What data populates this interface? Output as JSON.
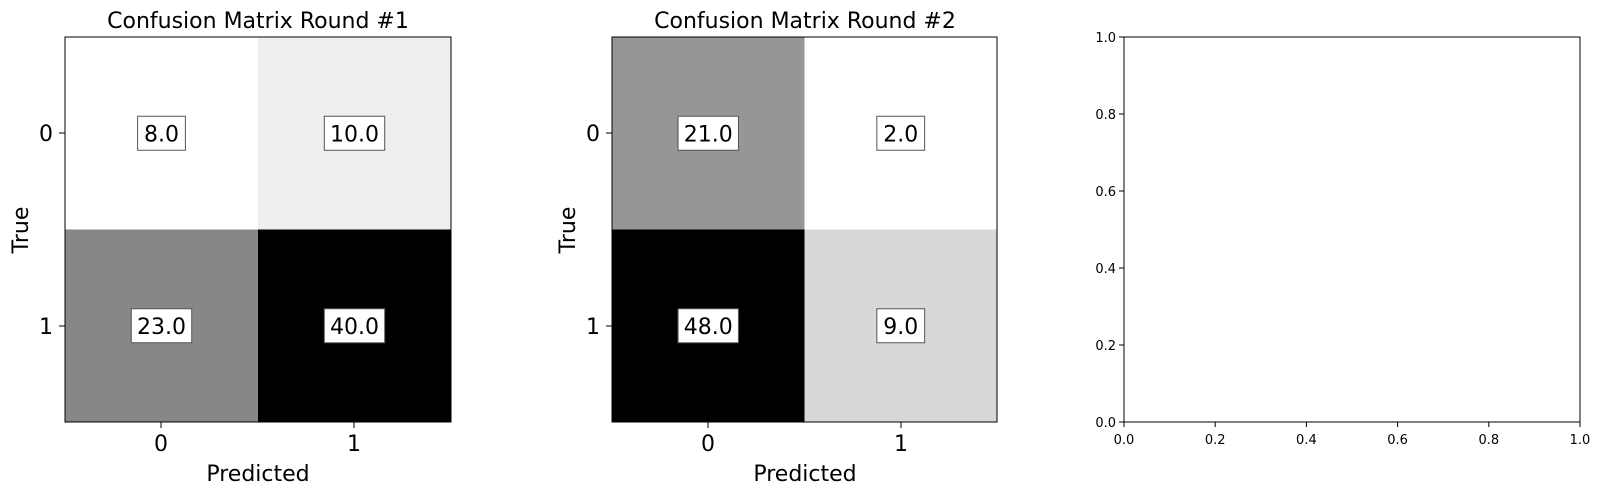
{
  "chart_data": [
    {
      "type": "heatmap",
      "title": "Confusion Matrix Round #1",
      "xlabel": "Predicted",
      "ylabel": "True",
      "x_ticks": [
        "0",
        "1"
      ],
      "y_ticks": [
        "0",
        "1"
      ],
      "values": [
        [
          8.0,
          10.0
        ],
        [
          23.0,
          40.0
        ]
      ],
      "value_labels": [
        [
          "8.0",
          "10.0"
        ],
        [
          "23.0",
          "40.0"
        ]
      ],
      "colormap": "Greys"
    },
    {
      "type": "heatmap",
      "title": "Confusion Matrix Round #2",
      "xlabel": "Predicted",
      "ylabel": "True",
      "x_ticks": [
        "0",
        "1"
      ],
      "y_ticks": [
        "0",
        "1"
      ],
      "values": [
        [
          21.0,
          2.0
        ],
        [
          48.0,
          9.0
        ]
      ],
      "value_labels": [
        [
          "21.0",
          "2.0"
        ],
        [
          "48.0",
          "9.0"
        ]
      ],
      "colormap": "Greys"
    },
    {
      "type": "scatter",
      "title": "",
      "xlabel": "",
      "ylabel": "",
      "xlim": [
        0.0,
        1.0
      ],
      "ylim": [
        0.0,
        1.0
      ],
      "x_ticks": [
        "0.0",
        "0.2",
        "0.4",
        "0.6",
        "0.8",
        "1.0"
      ],
      "y_ticks": [
        "0.0",
        "0.2",
        "0.4",
        "0.6",
        "0.8",
        "1.0"
      ],
      "series": []
    }
  ]
}
